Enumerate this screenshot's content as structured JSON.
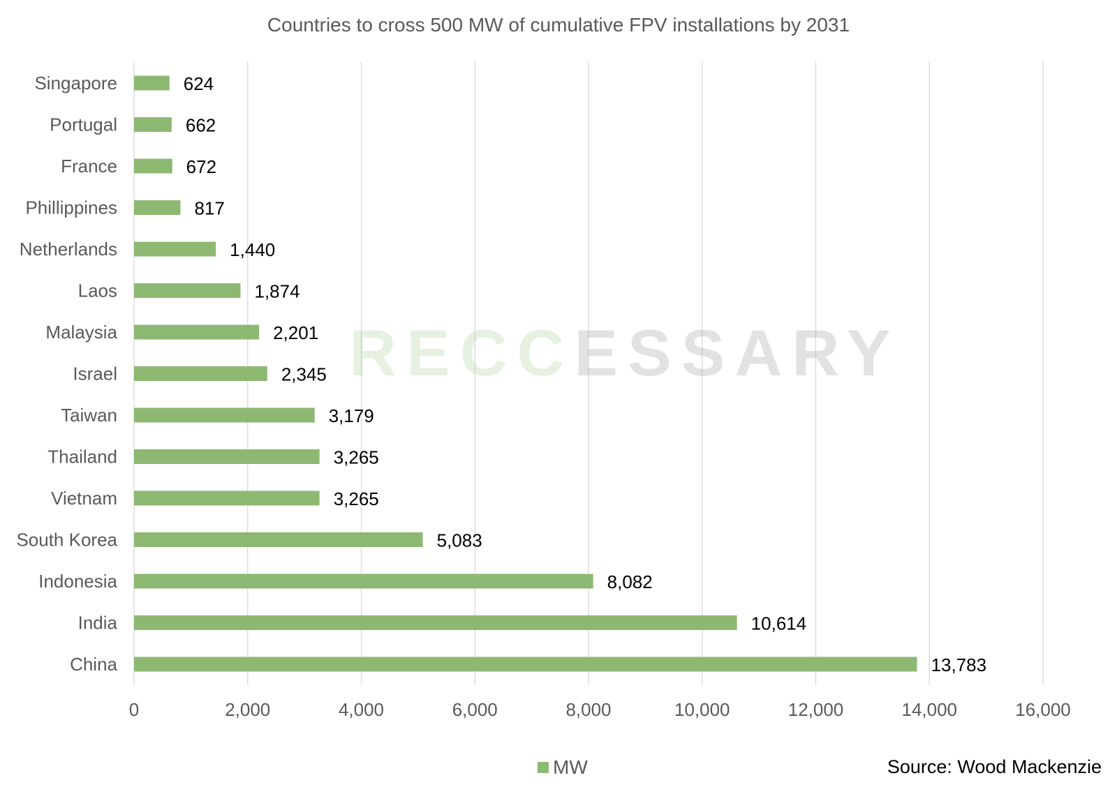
{
  "chart_data": {
    "type": "bar",
    "orientation": "horizontal",
    "title": "Countries to cross 500 MW of cumulative FPV installations by 2031",
    "categories": [
      "Singapore",
      "Portugal",
      "France",
      "Phillippines",
      "Netherlands",
      "Laos",
      "Malaysia",
      "Israel",
      "Taiwan",
      "Thailand",
      "Vietnam",
      "South Korea",
      "Indonesia",
      "India",
      "China"
    ],
    "series": [
      {
        "name": "MW",
        "values": [
          624,
          662,
          672,
          817,
          1440,
          1874,
          2201,
          2345,
          3179,
          3265,
          3265,
          5083,
          8082,
          10614,
          13783
        ]
      }
    ],
    "value_labels": [
      "624",
      "662",
      "672",
      "817",
      "1,440",
      "1,874",
      "2,201",
      "2,345",
      "3,179",
      "3,265",
      "3,265",
      "5,083",
      "8,082",
      "10,614",
      "13,783"
    ],
    "xlim": [
      0,
      16000
    ],
    "xticks": [
      0,
      2000,
      4000,
      6000,
      8000,
      10000,
      12000,
      14000,
      16000
    ],
    "xtick_labels": [
      "0",
      "2,000",
      "4,000",
      "6,000",
      "8,000",
      "10,000",
      "12,000",
      "14,000",
      "16,000"
    ],
    "grid": "vertical",
    "legend": "bottom-center",
    "bar_color": "#8DB872"
  },
  "source": "Source: Wood Mackenzie",
  "watermark": {
    "accent": "RECC",
    "rest": "ESSARY"
  }
}
